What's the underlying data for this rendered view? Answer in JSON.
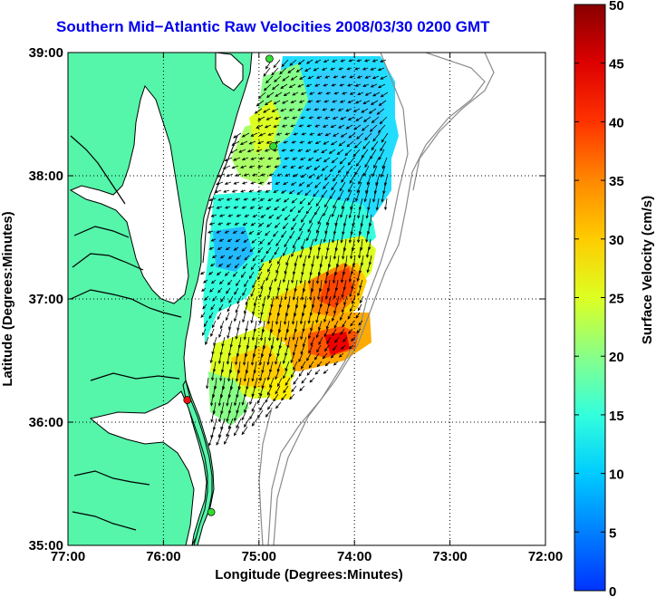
{
  "title": "Southern Mid−Atlantic Raw Velocities 2008/03/30 0200 GMT",
  "xlabel": "Longitude (Degrees:Minutes)",
  "ylabel": "Latitude (Degrees:Minutes)",
  "colorbar_label": "Surface Velocity (cm/s)",
  "x_ticks": [
    "77:00",
    "76:00",
    "75:00",
    "74:00",
    "73:00",
    "72:00"
  ],
  "y_ticks": [
    "39:00",
    "38:00",
    "37:00",
    "36:00",
    "35:00"
  ],
  "colorbar_ticks": [
    "0",
    "5",
    "10",
    "15",
    "20",
    "25",
    "30",
    "35",
    "40",
    "45",
    "50"
  ],
  "colors": {
    "title": "#0000ee",
    "land": "#55f5aa",
    "coastline": "#000000",
    "bathymetry": "#8a8a8a",
    "station_green": "#33dd33",
    "station_red": "#ee1111"
  },
  "map": {
    "lon_range": [
      -77,
      -72
    ],
    "lat_range": [
      35,
      39
    ],
    "grid": "dotted",
    "colormap": "jet",
    "velocity_range_cm_s": [
      0,
      50
    ],
    "stations": [
      {
        "lon": -74.89,
        "lat": 38.95,
        "color": "green"
      },
      {
        "lon": -74.85,
        "lat": 38.24,
        "color": "green"
      },
      {
        "lon": -75.75,
        "lat": 36.18,
        "color": "red"
      },
      {
        "lon": -75.5,
        "lat": 35.27,
        "color": "green"
      }
    ]
  }
}
